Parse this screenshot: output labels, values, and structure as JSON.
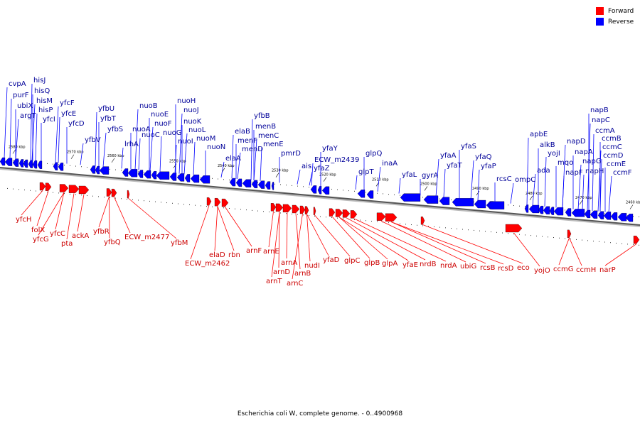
{
  "legend": {
    "forward_label": "Forward",
    "reverse_label": "Reverse",
    "forward_color": "#ff0000",
    "reverse_color": "#0000ff"
  },
  "caption": "Escherichia coli W, complete genome. - 0..4900968",
  "kbp_ticks": [
    "2580 kbp",
    "2570 kbp",
    "2560 kbp",
    "2550 kbp",
    "2540 kbp",
    "2530 kbp",
    "2520 kbp",
    "2510 kbp",
    "2500 kbp",
    "2490 kbp",
    "2480 kbp",
    "2470 kbp",
    "2460 kbp"
  ],
  "reverse_labels": [
    "cvpA",
    "purF",
    "ubiX",
    "argT",
    "hisJ",
    "hisQ",
    "hisM",
    "hisP",
    "yfcI",
    "yfcF",
    "yfcE",
    "yfcD",
    "yfbV",
    "yfbU",
    "yfbT",
    "yfbS",
    "lrhA",
    "nuoA",
    "nuoB",
    "nuoC",
    "nuoE",
    "nuoF",
    "nuoG",
    "nuoH",
    "nuoJ",
    "nuoI",
    "nuoK",
    "nuoL",
    "nuoM",
    "nuoN",
    "elaA",
    "elaB",
    "menF",
    "menD",
    "yfbB",
    "menB",
    "menC",
    "menE",
    "pmrD",
    "ais",
    "ECW_m2439",
    "yfaY",
    "yfaZ",
    "glpT",
    "glpQ",
    "inaA",
    "yfaL",
    "gyrA",
    "yfaA",
    "yfaT",
    "yfaS",
    "yfaQ",
    "yfaP",
    "rcsC",
    "ompC",
    "apbE",
    "alkB",
    "ada",
    "yojI",
    "mqo",
    "napD",
    "napF",
    "napA",
    "napG",
    "napH",
    "napB",
    "napC",
    "ccmA",
    "ccmB",
    "ccmC",
    "ccmD",
    "ccmE",
    "ccmF"
  ],
  "forward_labels": [
    "yfcH",
    "folX",
    "yfcG",
    "yfcC",
    "pta",
    "ackA",
    "yfbR",
    "yfbQ",
    "ECW_m2477",
    "yfbM",
    "ECW_m2462",
    "elaD",
    "rbn",
    "arnF",
    "arnE",
    "arnT",
    "arnD",
    "arnA",
    "arnB",
    "arnC",
    "nudI",
    "yfaD",
    "glpC",
    "glpB",
    "glpA",
    "yfaE",
    "nrdB",
    "nrdA",
    "ubiG",
    "rcsB",
    "rcsD",
    "eco",
    "yojO",
    "ccmG",
    "ccmH",
    "narP"
  ]
}
